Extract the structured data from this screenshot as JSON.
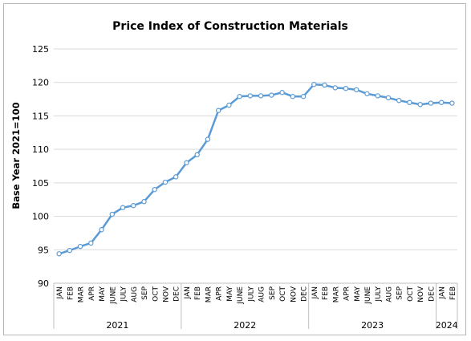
{
  "chart_data": {
    "type": "line",
    "title": "Price Index of Construction Materials",
    "xlabel": "",
    "ylabel": "Base Year 2021=100",
    "ylim": [
      90,
      125
    ],
    "yticks": [
      90,
      95,
      100,
      105,
      110,
      115,
      120,
      125
    ],
    "grid": true,
    "legend": "none",
    "line_color": "#5B9BD5",
    "years": [
      {
        "label": "2021",
        "months": 12
      },
      {
        "label": "2022",
        "months": 12
      },
      {
        "label": "2023",
        "months": 12
      },
      {
        "label": "2024",
        "months": 2
      }
    ],
    "categories": [
      "JAN",
      "FEB",
      "MAR",
      "APR",
      "MAY",
      "JUNE",
      "JULY",
      "AUG",
      "SEP",
      "OCT",
      "NOV",
      "DEC",
      "JAN",
      "FEB",
      "MAR",
      "APR",
      "MAY",
      "JUNE",
      "JULY",
      "AUG",
      "SEP",
      "OCT",
      "NOV",
      "DEC",
      "JAN",
      "FEB",
      "MAR",
      "APR",
      "MAY",
      "JUNE",
      "JULY",
      "AUG",
      "SEP",
      "OCT",
      "NOV",
      "DEC",
      "JAN",
      "FEB"
    ],
    "series": [
      {
        "values": [
          94.4,
          94.9,
          95.5,
          96.0,
          98.0,
          100.3,
          101.3,
          101.6,
          102.2,
          104.0,
          105.1,
          105.9,
          108.0,
          109.2,
          111.5,
          115.8,
          116.6,
          117.9,
          118.0,
          118.0,
          118.1,
          118.5,
          117.9,
          117.9,
          119.7,
          119.6,
          119.2,
          119.1,
          118.9,
          118.3,
          118.0,
          117.7,
          117.3,
          117.0,
          116.7,
          116.9,
          117.0,
          116.9
        ]
      }
    ]
  }
}
